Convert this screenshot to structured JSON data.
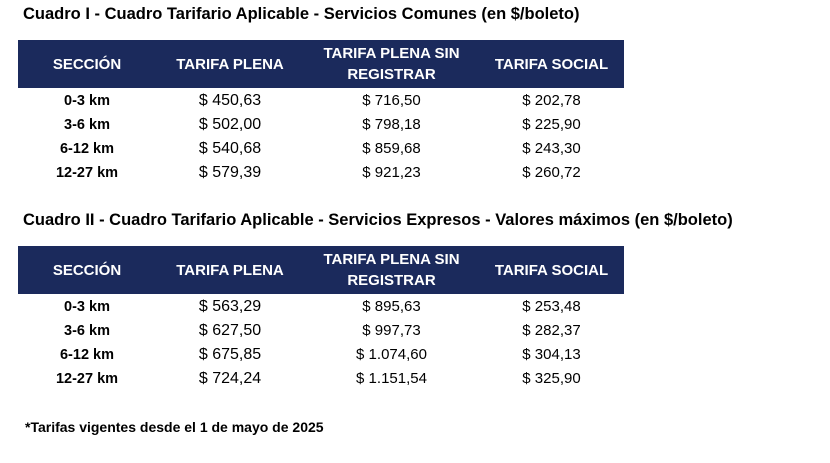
{
  "table1": {
    "title": "Cuadro I - Cuadro Tarifario Aplicable - Servicios Comunes (en $/boleto)",
    "headers": [
      "SECCIÓN",
      "TARIFA PLENA",
      "TARIFA PLENA SIN REGISTRAR",
      "TARIFA SOCIAL"
    ],
    "rows": [
      [
        "0-3 km",
        "$ 450,63",
        "$ 716,50",
        "$ 202,78"
      ],
      [
        "3-6 km",
        "$ 502,00",
        "$ 798,18",
        "$ 225,90"
      ],
      [
        "6-12 km",
        "$ 540,68",
        "$ 859,68",
        "$ 243,30"
      ],
      [
        "12-27 km",
        "$ 579,39",
        "$ 921,23",
        "$ 260,72"
      ]
    ]
  },
  "table2": {
    "title": "Cuadro II - Cuadro Tarifario Aplicable - Servicios Expresos - Valores máximos (en $/boleto)",
    "headers": [
      "SECCIÓN",
      "TARIFA PLENA",
      "TARIFA PLENA SIN REGISTRAR",
      "TARIFA SOCIAL"
    ],
    "rows": [
      [
        "0-3 km",
        "$ 563,29",
        "$ 895,63",
        "$ 253,48"
      ],
      [
        "3-6 km",
        "$ 627,50",
        "$ 997,73",
        "$ 282,37"
      ],
      [
        "6-12 km",
        "$ 675,85",
        "$ 1.074,60",
        "$ 304,13"
      ],
      [
        "12-27 km",
        "$ 724,24",
        "$ 1.151,54",
        "$ 325,90"
      ]
    ]
  },
  "footnote": "*Tarifas vigentes desde el 1 de mayo de 2025",
  "colors": {
    "header_background": "#1b2a5c",
    "header_text": "#ffffff",
    "body_text": "#000000"
  }
}
